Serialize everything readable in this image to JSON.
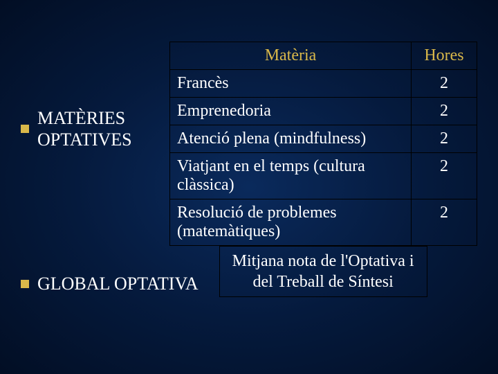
{
  "colors": {
    "background_center": "#0a2a5c",
    "background_edge": "#020e24",
    "bullet": "#d9b84a",
    "header_text": "#d9b84a",
    "body_text": "#ffffff",
    "border": "#000000"
  },
  "typography": {
    "font_family": "Times New Roman",
    "label_fontsize": 26,
    "table_fontsize": 24
  },
  "section1": {
    "label_line1": "MATÈRIES",
    "label_line2": "OPTATIVES"
  },
  "table": {
    "header_subject": "Matèria",
    "header_hours": "Hores",
    "rows": [
      {
        "subject": "Francès",
        "hours": "2"
      },
      {
        "subject": "Emprenedoria",
        "hours": "2"
      },
      {
        "subject": "Atenció plena (mindfulness)",
        "hours": "2"
      },
      {
        "subject": "Viatjant en el temps (cultura clàssica)",
        "hours": "2"
      },
      {
        "subject": "Resolució de problemes (matemàtiques)",
        "hours": "2"
      }
    ]
  },
  "section2": {
    "label": "GLOBAL OPTATIVA",
    "box_line1": "Mitjana nota de l'Optativa i",
    "box_line2": "del Treball de Síntesi"
  }
}
